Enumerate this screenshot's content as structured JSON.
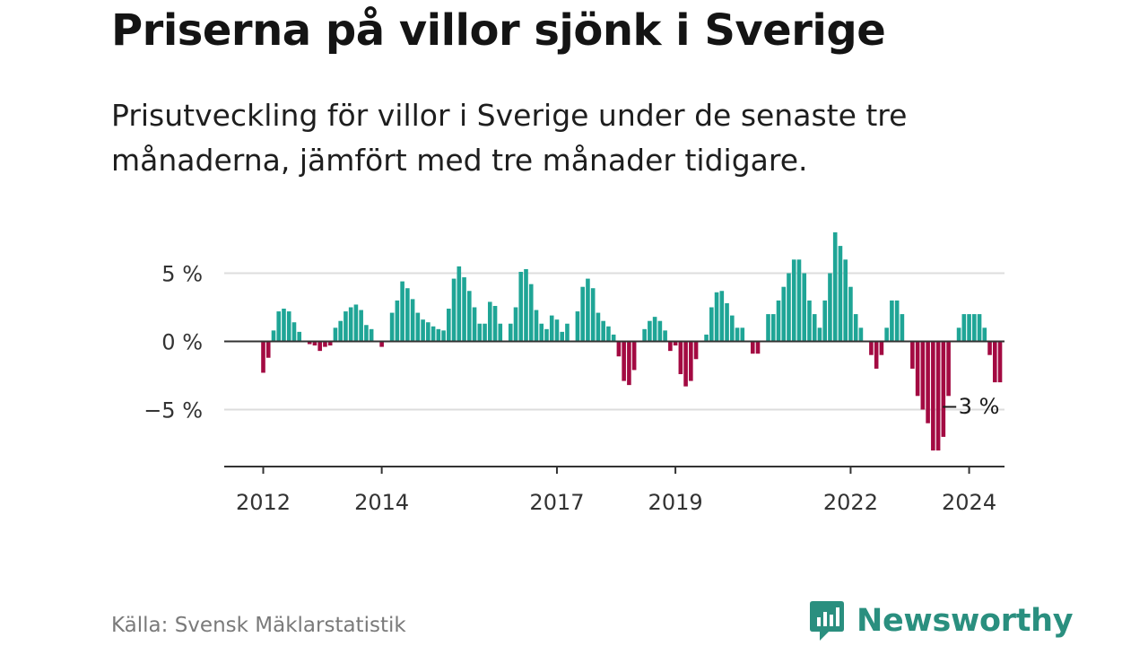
{
  "title": "Priserna på villor sjönk i Sverige",
  "subtitle": "Prisutveckling för villor i Sverige under de senaste tre månaderna, jämfört med tre månader tidigare.",
  "source": "Källa: Svensk Mäklarstatistik",
  "brand": {
    "name": "Newsworthy",
    "logo_icon": "bar-chart-speech-icon"
  },
  "colors": {
    "positive": "#1fa596",
    "negative": "#a30a42",
    "gridline": "#dddddd",
    "axis": "#333333"
  },
  "chart_data": {
    "type": "bar",
    "title": "Priserna på villor sjönk i Sverige",
    "xlabel": "",
    "ylabel": "",
    "ylim": [
      -9,
      8.5
    ],
    "y_ticks": [
      {
        "value": 5,
        "label": "5 %"
      },
      {
        "value": 0,
        "label": "0 %"
      },
      {
        "value": -5,
        "label": "−5 %"
      }
    ],
    "x_ticks": [
      {
        "label": "2012",
        "index": 0
      },
      {
        "label": "2014",
        "index": 23
      },
      {
        "label": "2017",
        "index": 57
      },
      {
        "label": "2019",
        "index": 80
      },
      {
        "label": "2022",
        "index": 114
      },
      {
        "label": "2024",
        "index": 137
      }
    ],
    "annotation": {
      "text": "−3 %",
      "index": 137,
      "value": -3
    },
    "series": [
      {
        "name": "Prisutveckling (%)",
        "values": [
          -2.3,
          -1.2,
          0.8,
          2.2,
          2.4,
          2.2,
          1.4,
          0.7,
          0,
          -0.2,
          -0.3,
          -0.7,
          -0.4,
          -0.3,
          1.0,
          1.5,
          2.2,
          2.5,
          2.7,
          2.3,
          1.2,
          0.9,
          0,
          -0.4,
          0,
          2.1,
          3.0,
          4.4,
          3.9,
          3.1,
          2.1,
          1.6,
          1.4,
          1.1,
          0.9,
          0.8,
          2.4,
          4.6,
          5.5,
          4.7,
          3.7,
          2.5,
          1.3,
          1.3,
          2.9,
          2.6,
          1.3,
          0,
          1.3,
          2.5,
          5.1,
          5.3,
          4.2,
          2.3,
          1.3,
          0.9,
          1.9,
          1.6,
          0.7,
          1.3,
          0,
          2.2,
          4.0,
          4.6,
          3.9,
          2.1,
          1.5,
          1.1,
          0.5,
          -1.1,
          -2.9,
          -3.2,
          -2.1,
          0,
          0.9,
          1.5,
          1.8,
          1.5,
          0.8,
          -0.7,
          -0.3,
          -2.4,
          -3.3,
          -2.9,
          -1.3,
          0,
          0.5,
          2.5,
          3.6,
          3.7,
          2.8,
          1.9,
          1.0,
          1.0,
          0,
          -0.9,
          -0.9,
          0,
          2.0,
          2.0,
          3.0,
          4.0,
          5.0,
          6.0,
          6.0,
          5.0,
          3.0,
          2.0,
          1.0,
          3.0,
          5.0,
          8.0,
          7.0,
          6.0,
          4.0,
          2.0,
          1.0,
          0,
          -1.0,
          -2.0,
          -1.0,
          1.0,
          3.0,
          3.0,
          2.0,
          0,
          -2.0,
          -4.0,
          -5.0,
          -6.0,
          -8.0,
          -8.0,
          -7.0,
          -4.0,
          0,
          1.0,
          2.0,
          2.0,
          2.0,
          2.0,
          1.0,
          -1.0,
          -3.0,
          -3.0
        ]
      }
    ]
  }
}
